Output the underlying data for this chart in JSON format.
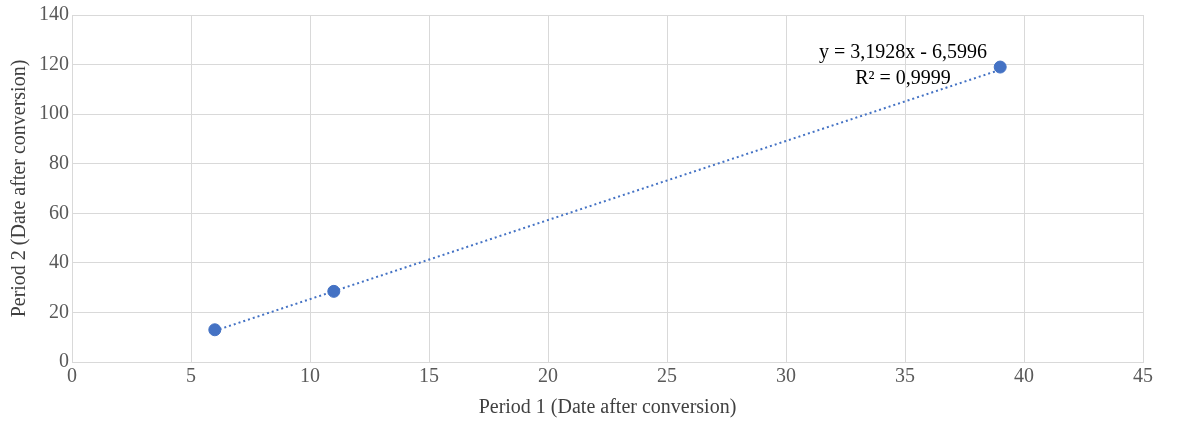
{
  "chart_data": {
    "type": "scatter",
    "xlabel": "Period 1 (Date after conversion)",
    "ylabel": "Period 2 (Date after conversion)",
    "xlim": [
      0,
      45
    ],
    "xticks": [
      0,
      5,
      10,
      15,
      20,
      25,
      30,
      35,
      40,
      45
    ],
    "ylim": [
      0,
      140
    ],
    "yticks": [
      0,
      20,
      40,
      60,
      80,
      100,
      120,
      140
    ],
    "grid": true,
    "legend": false,
    "marker": "circle",
    "series": [
      {
        "type": "scatter",
        "color": "#4472c4",
        "x": [
          6,
          11,
          39
        ],
        "values": [
          13,
          28.5,
          119
        ]
      },
      {
        "type": "line",
        "color": "#4472c4",
        "marker": "none",
        "line_style": "dotted",
        "x": [
          6,
          39
        ],
        "values": [
          12.6,
          117.9
        ]
      }
    ],
    "annotations": [
      "y = 3,1928x - 6,5996",
      "R² = 0,9999"
    ]
  }
}
